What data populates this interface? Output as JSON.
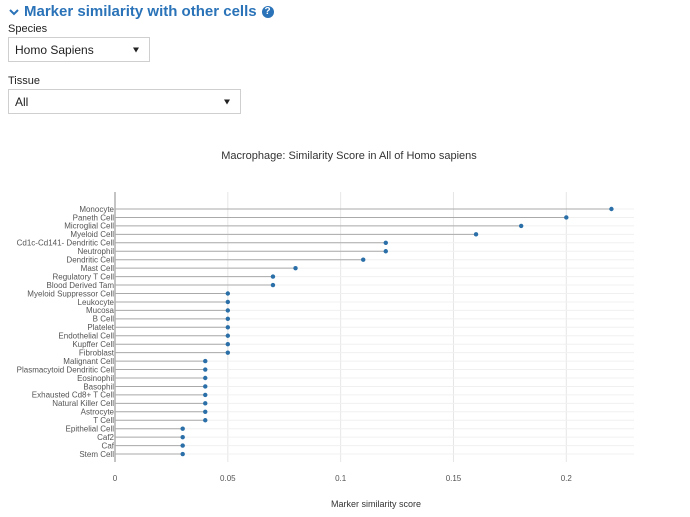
{
  "header": {
    "title": "Marker similarity with other cells",
    "help_glyph": "?"
  },
  "species": {
    "label": "Species",
    "value": "Homo Sapiens"
  },
  "tissue": {
    "label": "Tissue",
    "value": "All"
  },
  "chart_data": {
    "type": "scatter",
    "style": "lollipop-horizontal",
    "title": "Macrophage: Similarity Score in All of Homo sapiens",
    "xlabel": "Marker similarity score",
    "ylabel": "",
    "xlim": [
      0,
      0.23
    ],
    "xticks": [
      0,
      0.05,
      0.1,
      0.15,
      0.2
    ],
    "xtick_labels": [
      "0",
      "0.05",
      "0.1",
      "0.15",
      "0.2"
    ],
    "grid": true,
    "point_color": "#2a6fa8",
    "stem_color": "#aaaaaa",
    "categories": [
      "Monocyte",
      "Paneth Cell",
      "Microglial Cell",
      "Myeloid Cell",
      "Cd1c-Cd141- Dendritic Cell",
      "Neutrophil",
      "Dendritic Cell",
      "Mast Cell",
      "Regulatory T Cell",
      "Blood Derived Tam",
      "Myeloid Suppressor Cell",
      "Leukocyte",
      "Mucosa",
      "B Cell",
      "Platelet",
      "Endothelial Cell",
      "Kupffer Cell",
      "Fibroblast",
      "Malignant Cell",
      "Plasmacytoid Dendritic Cell",
      "Eosinophil",
      "Basophil",
      "Exhausted Cd8+ T Cell",
      "Natural Killer Cell",
      "Astrocyte",
      "T Cell",
      "Epithelial Cell",
      "Caf2",
      "Caf",
      "Stem Cell"
    ],
    "values": [
      0.22,
      0.2,
      0.18,
      0.16,
      0.12,
      0.12,
      0.11,
      0.08,
      0.07,
      0.07,
      0.05,
      0.05,
      0.05,
      0.05,
      0.05,
      0.05,
      0.05,
      0.05,
      0.04,
      0.04,
      0.04,
      0.04,
      0.04,
      0.04,
      0.04,
      0.04,
      0.03,
      0.03,
      0.03,
      0.03
    ]
  }
}
